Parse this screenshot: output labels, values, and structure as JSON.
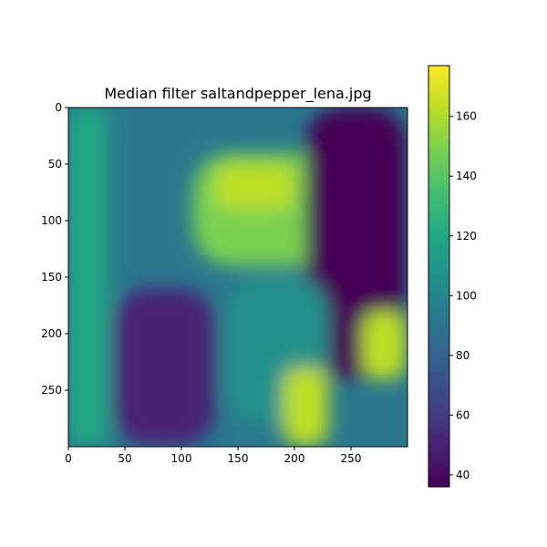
{
  "chart_data": {
    "type": "heatmap",
    "title": "Median filter saltandpepper_lena.jpg",
    "xlabel": "",
    "ylabel": "",
    "xlim": [
      0,
      299
    ],
    "ylim": [
      299,
      0
    ],
    "x_ticks": [
      0,
      50,
      100,
      150,
      200,
      250
    ],
    "y_ticks": [
      0,
      50,
      100,
      150,
      200,
      250
    ],
    "colormap": "viridis",
    "colorbar": {
      "range": [
        36,
        177
      ],
      "ticks": [
        40,
        60,
        80,
        100,
        120,
        140,
        160
      ]
    },
    "grid": false,
    "approximate_regions": [
      {
        "desc": "background",
        "value": 95
      },
      {
        "desc": "left bright strip",
        "x": [
          0,
          35
        ],
        "y": [
          0,
          299
        ],
        "value": 120
      },
      {
        "desc": "hat brim band",
        "x": [
          110,
          250
        ],
        "y": [
          40,
          140
        ],
        "value": 150
      },
      {
        "desc": "hat feather highlight",
        "x": [
          130,
          200
        ],
        "y": [
          50,
          90
        ],
        "value": 168
      },
      {
        "desc": "dark diagonal hair",
        "x": [
          210,
          299
        ],
        "y": [
          0,
          240
        ],
        "value": 42
      },
      {
        "desc": "dark left region",
        "x": [
          40,
          130
        ],
        "y": [
          160,
          299
        ],
        "value": 50
      },
      {
        "desc": "face region",
        "x": [
          140,
          230
        ],
        "y": [
          150,
          280
        ],
        "value": 110
      },
      {
        "desc": "right bright patch",
        "x": [
          260,
          299
        ],
        "y": [
          180,
          240
        ],
        "value": 165
      },
      {
        "desc": "lower shoulder bright",
        "x": [
          190,
          230
        ],
        "y": [
          230,
          299
        ],
        "value": 160
      }
    ]
  }
}
